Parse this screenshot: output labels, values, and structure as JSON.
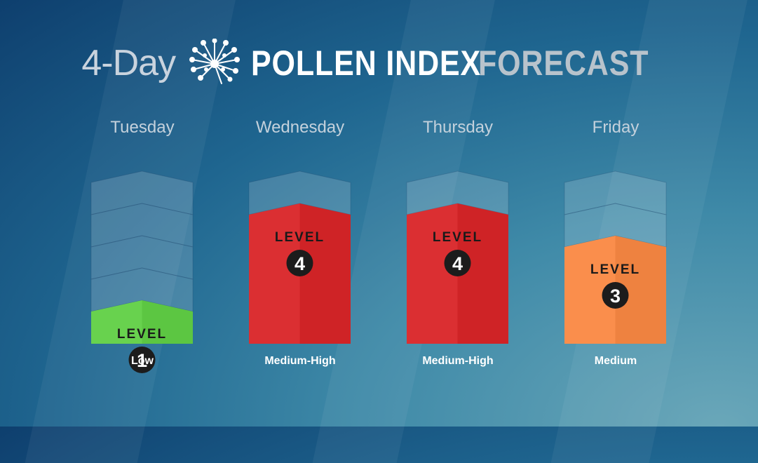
{
  "title": {
    "prefix": "4-Day",
    "main": "POLLEN INDEX",
    "suffix": "FORECAST",
    "icon": "dandelion-icon"
  },
  "colors": {
    "low": "#5cc642",
    "medium": "#ee8240",
    "medium_high": "#cf2326"
  },
  "chart_data": {
    "type": "bar",
    "categories": [
      "Tuesday",
      "Wednesday",
      "Thursday",
      "Friday"
    ],
    "values": [
      1,
      4,
      4,
      3
    ],
    "ylim": [
      0,
      5
    ],
    "level_word": "LEVEL",
    "ratings": [
      "Low",
      "Medium-High",
      "Medium-High",
      "Medium"
    ],
    "bar_colors": [
      "#5cc642",
      "#cf2326",
      "#cf2326",
      "#ee8240"
    ]
  }
}
